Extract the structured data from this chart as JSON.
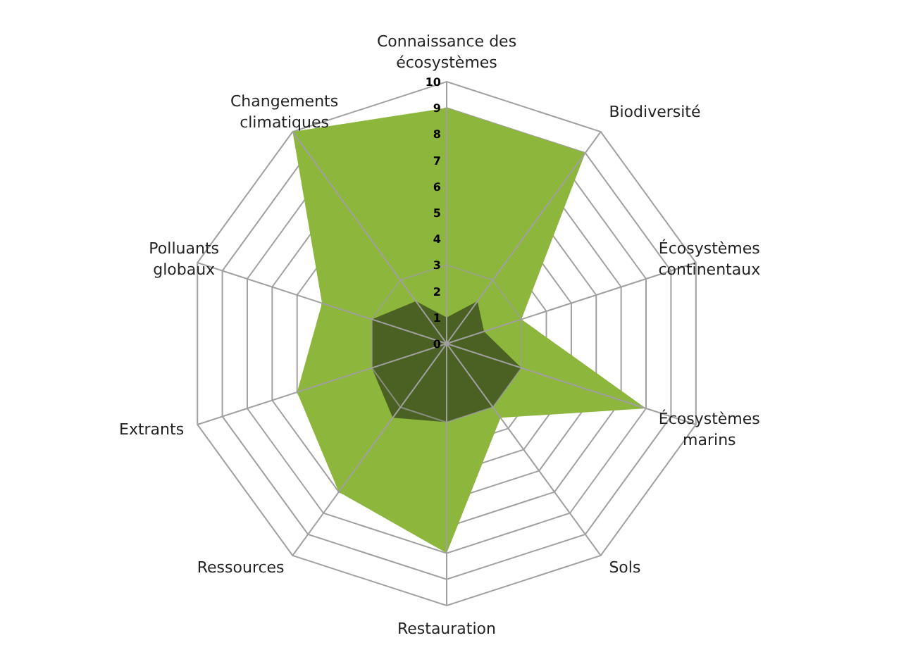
{
  "chart_data": {
    "type": "radar",
    "categories": [
      "Connaissance des écosystèmes",
      "Biodiversité",
      "Écosystèmes continentaux",
      "Écosystèmes marins",
      "Sols",
      "Restauration",
      "Ressources",
      "Extrants",
      "Polluants globaux",
      "Changements climatiques"
    ],
    "series": [
      {
        "color": "#8db63c",
        "values": [
          9,
          9,
          3,
          8,
          3.5,
          8,
          7,
          6,
          5,
          10
        ]
      },
      {
        "color": "#4b6123",
        "values": [
          1,
          2,
          1.5,
          3,
          3,
          3,
          3.5,
          3,
          3,
          2
        ]
      }
    ],
    "ylim": [
      0,
      10
    ],
    "yticks": [
      0,
      1,
      2,
      3,
      4,
      5,
      6,
      7,
      8,
      9,
      10
    ],
    "grid": true
  }
}
